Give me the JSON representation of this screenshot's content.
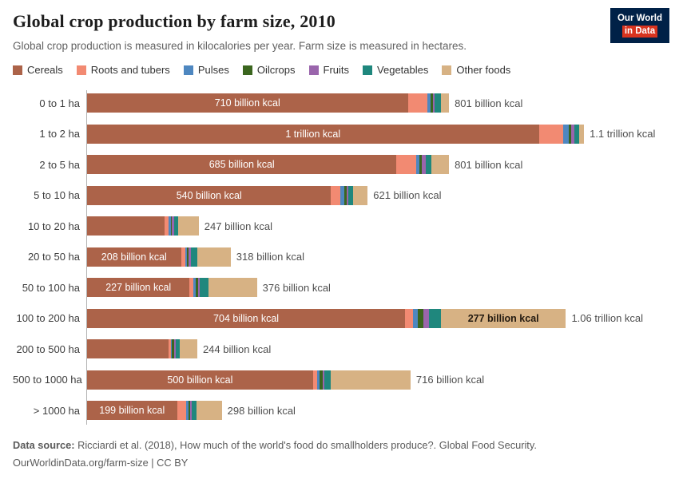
{
  "header": {
    "title": "Global crop production by farm size, 2010",
    "subtitle": "Global crop production is measured in kilocalories per year. Farm size is measured in hectares.",
    "logo": {
      "line1": "Our World",
      "line2": "in Data"
    }
  },
  "chart_data": {
    "type": "bar",
    "stacked": true,
    "orientation": "horizontal",
    "title": "Global crop production by farm size, 2010",
    "unit": "billion kcal per year",
    "xlim_billion_kcal": [
      0,
      1150
    ],
    "legend_position": "top",
    "grid": false,
    "series": [
      "Cereals",
      "Roots and tubers",
      "Pulses",
      "Oilcrops",
      "Fruits",
      "Vegetables",
      "Other foods"
    ],
    "colors": [
      "#AC6349",
      "#F28A72",
      "#4E87C0",
      "#3B661F",
      "#9A65AC",
      "#1F877D",
      "#D7B284"
    ],
    "rows": [
      {
        "category": "0 to 1 ha",
        "values_billion_kcal": [
          710,
          44,
          7,
          5,
          4,
          13,
          18
        ],
        "segment_labels": {
          "0": "710 billion kcal"
        },
        "total_label": "801 billion kcal"
      },
      {
        "category": "1 to 2 ha",
        "values_billion_kcal": [
          1000,
          53,
          14,
          5,
          7,
          11,
          10
        ],
        "segment_labels": {
          "0": "1 trillion kcal"
        },
        "total_label": "1.1 trillion kcal"
      },
      {
        "category": "2 to 5 ha",
        "values_billion_kcal": [
          685,
          44,
          7,
          5,
          9,
          12,
          39
        ],
        "segment_labels": {
          "0": "685 billion kcal"
        },
        "total_label": "801 billion kcal"
      },
      {
        "category": "5 to 10 ha",
        "values_billion_kcal": [
          540,
          21,
          9,
          4,
          5,
          9,
          33
        ],
        "segment_labels": {
          "0": "540 billion kcal"
        },
        "total_label": "621 billion kcal"
      },
      {
        "category": "10 to 20 ha",
        "values_billion_kcal": [
          172,
          9,
          4,
          3,
          4,
          9,
          46
        ],
        "segment_labels": {},
        "total_label": "247 billion kcal"
      },
      {
        "category": "20 to 50 ha",
        "values_billion_kcal": [
          208,
          9,
          4,
          4,
          5,
          14,
          74
        ],
        "segment_labels": {
          "0": "208 billion kcal"
        },
        "total_label": "318 billion kcal"
      },
      {
        "category": "50 to 100 ha",
        "values_billion_kcal": [
          227,
          9,
          4,
          5,
          5,
          18,
          108
        ],
        "segment_labels": {
          "0": "227 billion kcal"
        },
        "total_label": "376 billion kcal"
      },
      {
        "category": "100 to 200 ha",
        "values_billion_kcal": [
          704,
          18,
          10,
          12,
          12,
          27,
          277
        ],
        "segment_labels": {
          "0": "704 billion kcal",
          "6": "277 billion kcal"
        },
        "total_label": "1.06 trillion kcal"
      },
      {
        "category": "200 to 500 ha",
        "values_billion_kcal": [
          180,
          5,
          3,
          5,
          3,
          9,
          39
        ],
        "segment_labels": {},
        "total_label": "244 billion kcal"
      },
      {
        "category": "500 to 1000 ha",
        "values_billion_kcal": [
          500,
          9,
          5,
          7,
          5,
          14,
          176
        ],
        "segment_labels": {
          "0": "500 billion kcal"
        },
        "total_label": "716 billion kcal"
      },
      {
        "category": "> 1000 ha",
        "values_billion_kcal": [
          199,
          21,
          4,
          4,
          4,
          10,
          56
        ],
        "segment_labels": {
          "0": "199 billion kcal"
        },
        "total_label": "298 billion kcal"
      }
    ]
  },
  "footer": {
    "source_label": "Data source:",
    "source_text": " Ricciardi et al. (2018), How much of the world's food do smallholders produce?. Global Food Security.",
    "link": "OurWorldinData.org/farm-size",
    "license": " | CC BY"
  }
}
